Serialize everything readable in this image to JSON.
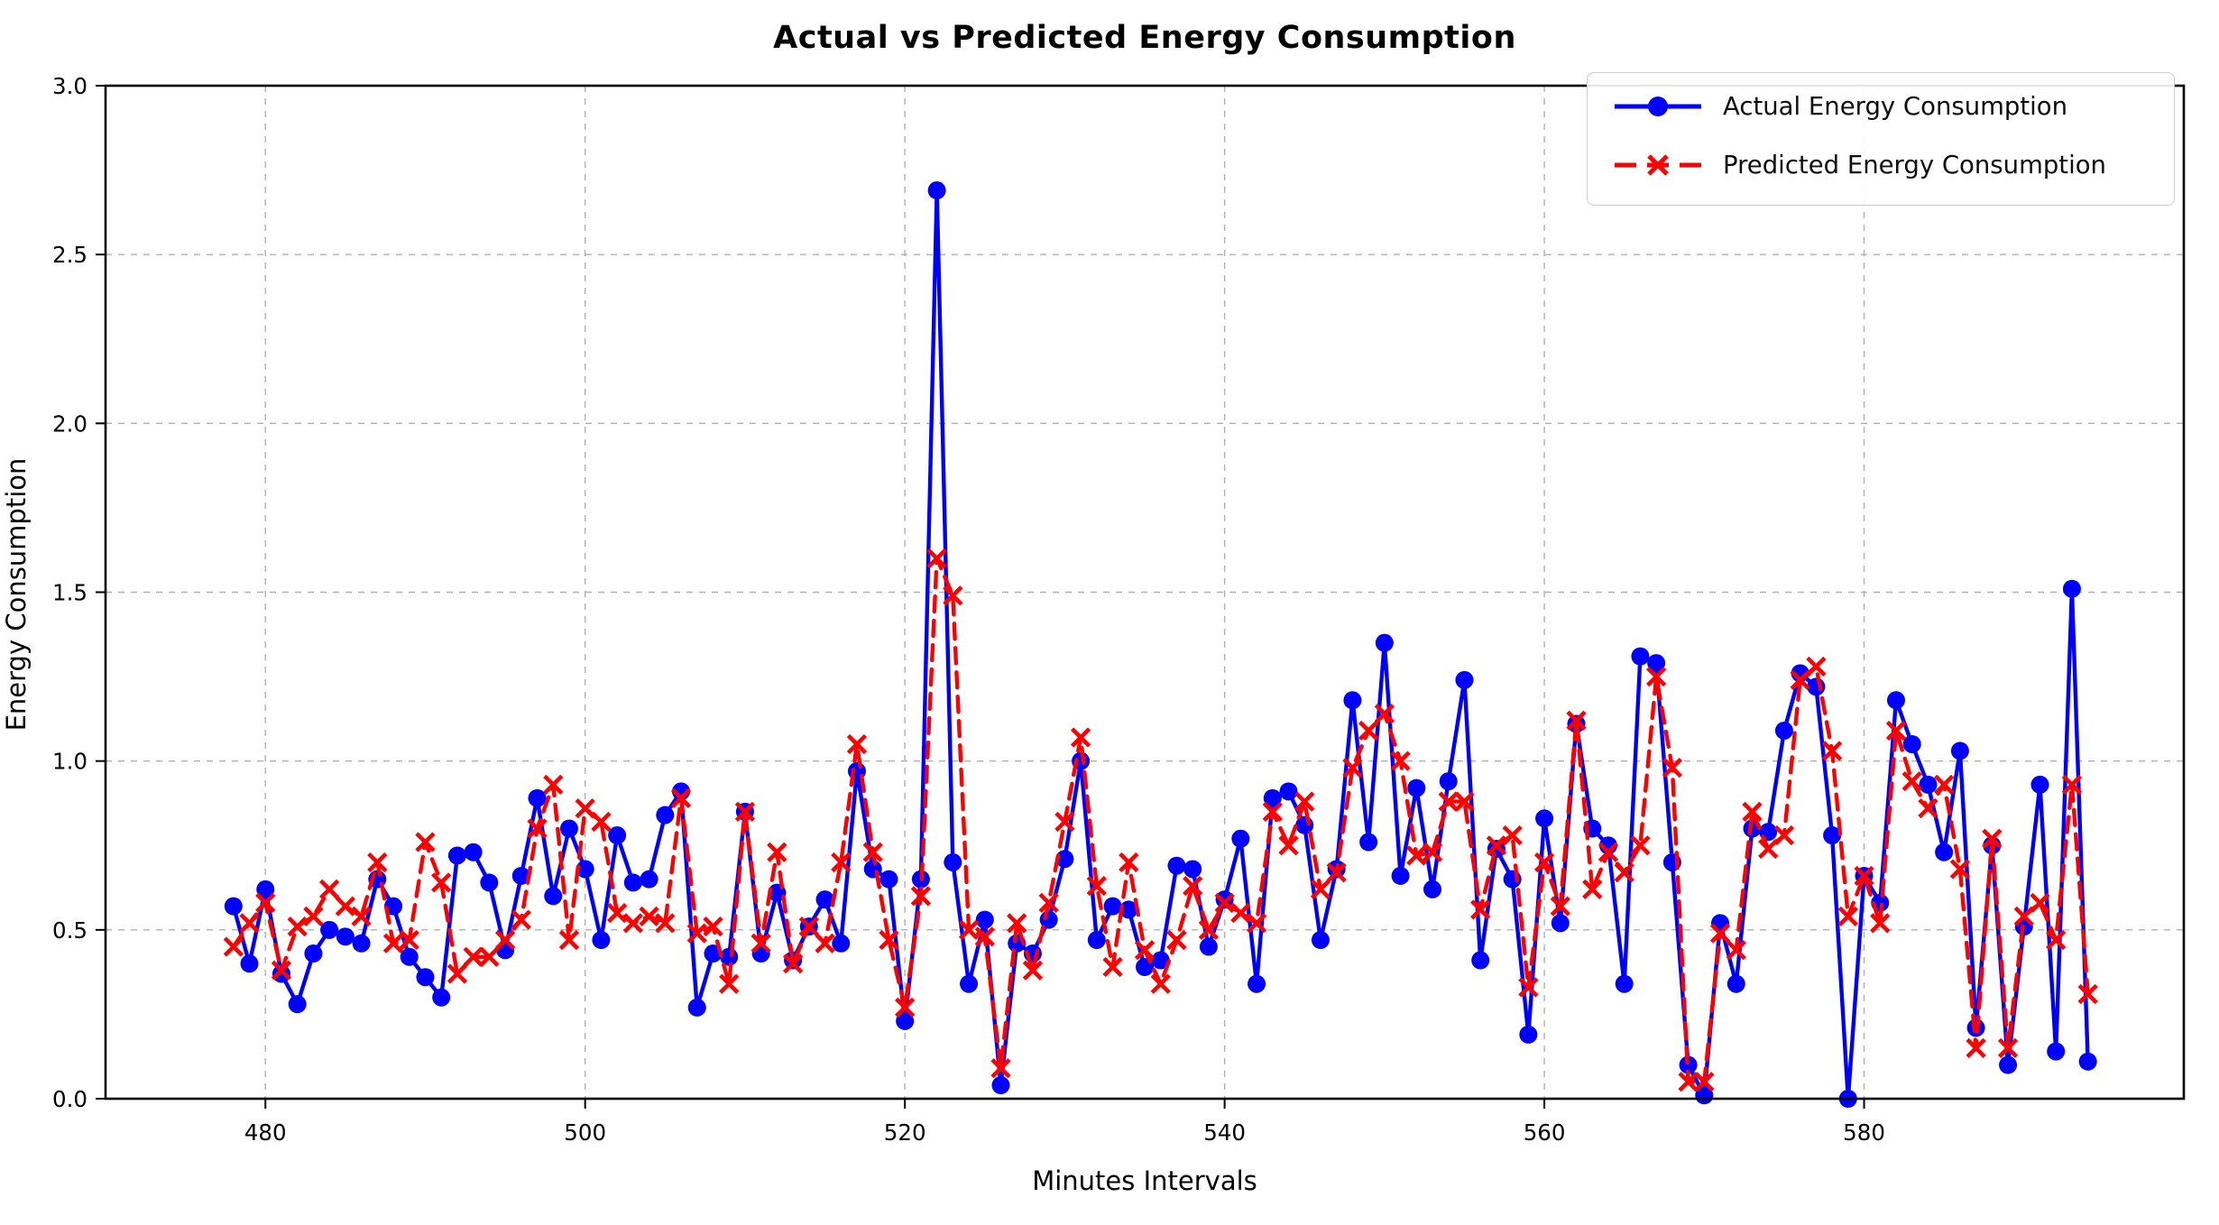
{
  "chart_data": {
    "type": "line",
    "title": "Actual vs Predicted Energy Consumption",
    "xlabel": "Minutes Intervals",
    "ylabel": "Energy Consumption",
    "xlim": [
      470,
      600
    ],
    "ylim": [
      0,
      3
    ],
    "x_ticks": [
      480,
      500,
      520,
      540,
      560,
      580
    ],
    "y_ticks": [
      "0.0",
      "0.5",
      "1.0",
      "1.5",
      "2.0",
      "2.5",
      "3.0"
    ],
    "grid": true,
    "legend_position": "upper right",
    "colors": {
      "actual": "#0000ff",
      "predicted": "#ff0000",
      "grid": "#b0b0b0",
      "spine": "#000000",
      "legend_border": "#cccccc"
    },
    "x": [
      478,
      479,
      480,
      481,
      482,
      483,
      484,
      485,
      486,
      487,
      488,
      489,
      490,
      491,
      492,
      493,
      494,
      495,
      496,
      497,
      498,
      499,
      500,
      501,
      502,
      503,
      504,
      505,
      506,
      507,
      508,
      509,
      510,
      511,
      512,
      513,
      514,
      515,
      516,
      517,
      518,
      519,
      520,
      521,
      522,
      523,
      524,
      525,
      526,
      527,
      528,
      529,
      530,
      531,
      532,
      533,
      534,
      535,
      536,
      537,
      538,
      539,
      540,
      541,
      542,
      543,
      544,
      545,
      546,
      547,
      548,
      549,
      550,
      551,
      552,
      553,
      554,
      555,
      556,
      557,
      558,
      559,
      560,
      561,
      562,
      563,
      564,
      565,
      566,
      567,
      568,
      569,
      570,
      571,
      572,
      573,
      574,
      575,
      576,
      577,
      578,
      579,
      580,
      581,
      582,
      583,
      584,
      585,
      586,
      587,
      588,
      589,
      590,
      591,
      592,
      593,
      594
    ],
    "series": [
      {
        "name": "Actual Energy Consumption",
        "color": "#0000ff",
        "style": "solid",
        "marker": "circle",
        "values": [
          0.57,
          0.4,
          0.62,
          0.37,
          0.28,
          0.43,
          0.5,
          0.48,
          0.46,
          0.65,
          0.57,
          0.42,
          0.36,
          0.3,
          0.72,
          0.73,
          0.64,
          0.44,
          0.66,
          0.89,
          0.6,
          0.8,
          0.68,
          0.47,
          0.78,
          0.64,
          0.65,
          0.84,
          0.91,
          0.27,
          0.43,
          0.42,
          0.85,
          0.43,
          0.61,
          0.41,
          0.51,
          0.59,
          0.46,
          0.97,
          0.68,
          0.65,
          0.23,
          0.65,
          2.69,
          0.7,
          0.34,
          0.53,
          0.04,
          0.46,
          0.43,
          0.53,
          0.71,
          1.0,
          0.47,
          0.57,
          0.56,
          0.39,
          0.41,
          0.69,
          0.68,
          0.45,
          0.59,
          0.77,
          0.34,
          0.89,
          0.91,
          0.81,
          0.47,
          0.68,
          1.18,
          0.76,
          1.35,
          0.66,
          0.92,
          0.62,
          0.94,
          1.24,
          0.41,
          0.74,
          0.65,
          0.19,
          0.83,
          0.52,
          1.11,
          0.8,
          0.75,
          0.34,
          1.31,
          1.29,
          0.7,
          0.1,
          0.01,
          0.52,
          0.34,
          0.8,
          0.79,
          1.09,
          1.26,
          1.22,
          0.78,
          0.0,
          0.66,
          0.58,
          1.18,
          1.05,
          0.93,
          0.73,
          1.03,
          0.21,
          0.75,
          0.1,
          0.51,
          0.93,
          0.14,
          1.51,
          0.11
        ]
      },
      {
        "name": "Predicted Energy Consumption",
        "color": "#ff0000",
        "style": "dashed",
        "marker": "x",
        "values": [
          0.45,
          0.52,
          0.58,
          0.38,
          0.51,
          0.54,
          0.62,
          0.57,
          0.54,
          0.7,
          0.46,
          0.47,
          0.76,
          0.64,
          0.37,
          0.42,
          0.42,
          0.47,
          0.53,
          0.8,
          0.93,
          0.47,
          0.86,
          0.82,
          0.55,
          0.52,
          0.54,
          0.52,
          0.89,
          0.49,
          0.51,
          0.34,
          0.85,
          0.46,
          0.73,
          0.4,
          0.51,
          0.46,
          0.7,
          1.05,
          0.73,
          0.47,
          0.27,
          0.6,
          1.6,
          1.49,
          0.5,
          0.48,
          0.09,
          0.52,
          0.38,
          0.58,
          0.82,
          1.07,
          0.63,
          0.39,
          0.7,
          0.44,
          0.34,
          0.47,
          0.63,
          0.5,
          0.58,
          0.55,
          0.52,
          0.85,
          0.75,
          0.88,
          0.62,
          0.67,
          0.98,
          1.09,
          1.14,
          1.0,
          0.72,
          0.73,
          0.88,
          0.88,
          0.56,
          0.75,
          0.78,
          0.33,
          0.7,
          0.57,
          1.12,
          0.62,
          0.73,
          0.67,
          0.75,
          1.25,
          0.98,
          0.05,
          0.05,
          0.49,
          0.44,
          0.85,
          0.74,
          0.78,
          1.24,
          1.28,
          1.03,
          0.54,
          0.66,
          0.52,
          1.09,
          0.94,
          0.86,
          0.93,
          0.68,
          0.15,
          0.77,
          0.15,
          0.54,
          0.58,
          0.47,
          0.93,
          0.31
        ]
      }
    ]
  }
}
